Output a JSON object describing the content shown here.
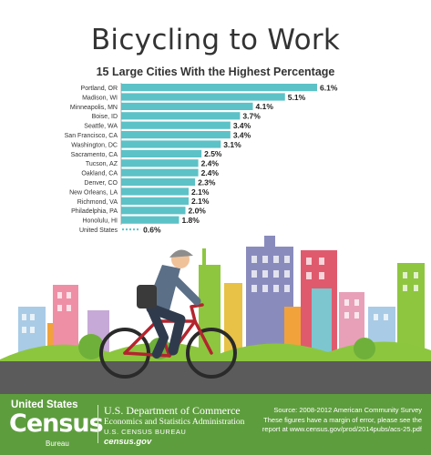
{
  "title": "Bicycling to Work",
  "chart_data": {
    "type": "bar",
    "orientation": "horizontal",
    "title": "15 Large Cities With the Highest Percentage",
    "categories": [
      "Portland, OR",
      "Madison, WI",
      "Minneapolis, MN",
      "Boise, ID",
      "Seattle, WA",
      "San Francisco, CA",
      "Washington, DC",
      "Sacramento, CA",
      "Tucson, AZ",
      "Oakland, CA",
      "Denver, CO",
      "New Orleans, LA",
      "Richmond, VA",
      "Philadelphia, PA",
      "Honolulu, HI",
      "United States"
    ],
    "values": [
      6.1,
      5.1,
      4.1,
      3.7,
      3.4,
      3.4,
      3.1,
      2.5,
      2.4,
      2.4,
      2.3,
      2.1,
      2.1,
      2.0,
      1.8,
      0.6
    ],
    "value_labels": [
      "6.1%",
      "5.1%",
      "4.1%",
      "3.7%",
      "3.4%",
      "3.4%",
      "3.1%",
      "2.5%",
      "2.4%",
      "2.4%",
      "2.3%",
      "2.1%",
      "2.1%",
      "2.0%",
      "1.8%",
      "0.6%"
    ],
    "reference_category": "United States",
    "bar_color": "#5cc2c7",
    "reference_style": "dotted",
    "xlim": [
      0,
      6.1
    ],
    "grid": false,
    "legend": "none"
  },
  "footer": {
    "logo_united": "United States",
    "logo_census": "Census",
    "logo_bureau": "Bureau",
    "dept": "U.S. Department of Commerce",
    "esa": "Economics and Statistics Administration",
    "bureau": "U.S. CENSUS BUREAU",
    "url": "census.gov",
    "source_line": "Source: 2008-2012 American Community Survey",
    "note_line1": "These figures have a margin of error, please see the",
    "note_line2": "report at www.census.gov/prod/2014pubs/acs-25.pdf"
  },
  "colors": {
    "footer_green": "#5e9d3e",
    "road": "#5b5b5b",
    "bike_frame": "#b3252e",
    "hills": "#8cc63f"
  }
}
